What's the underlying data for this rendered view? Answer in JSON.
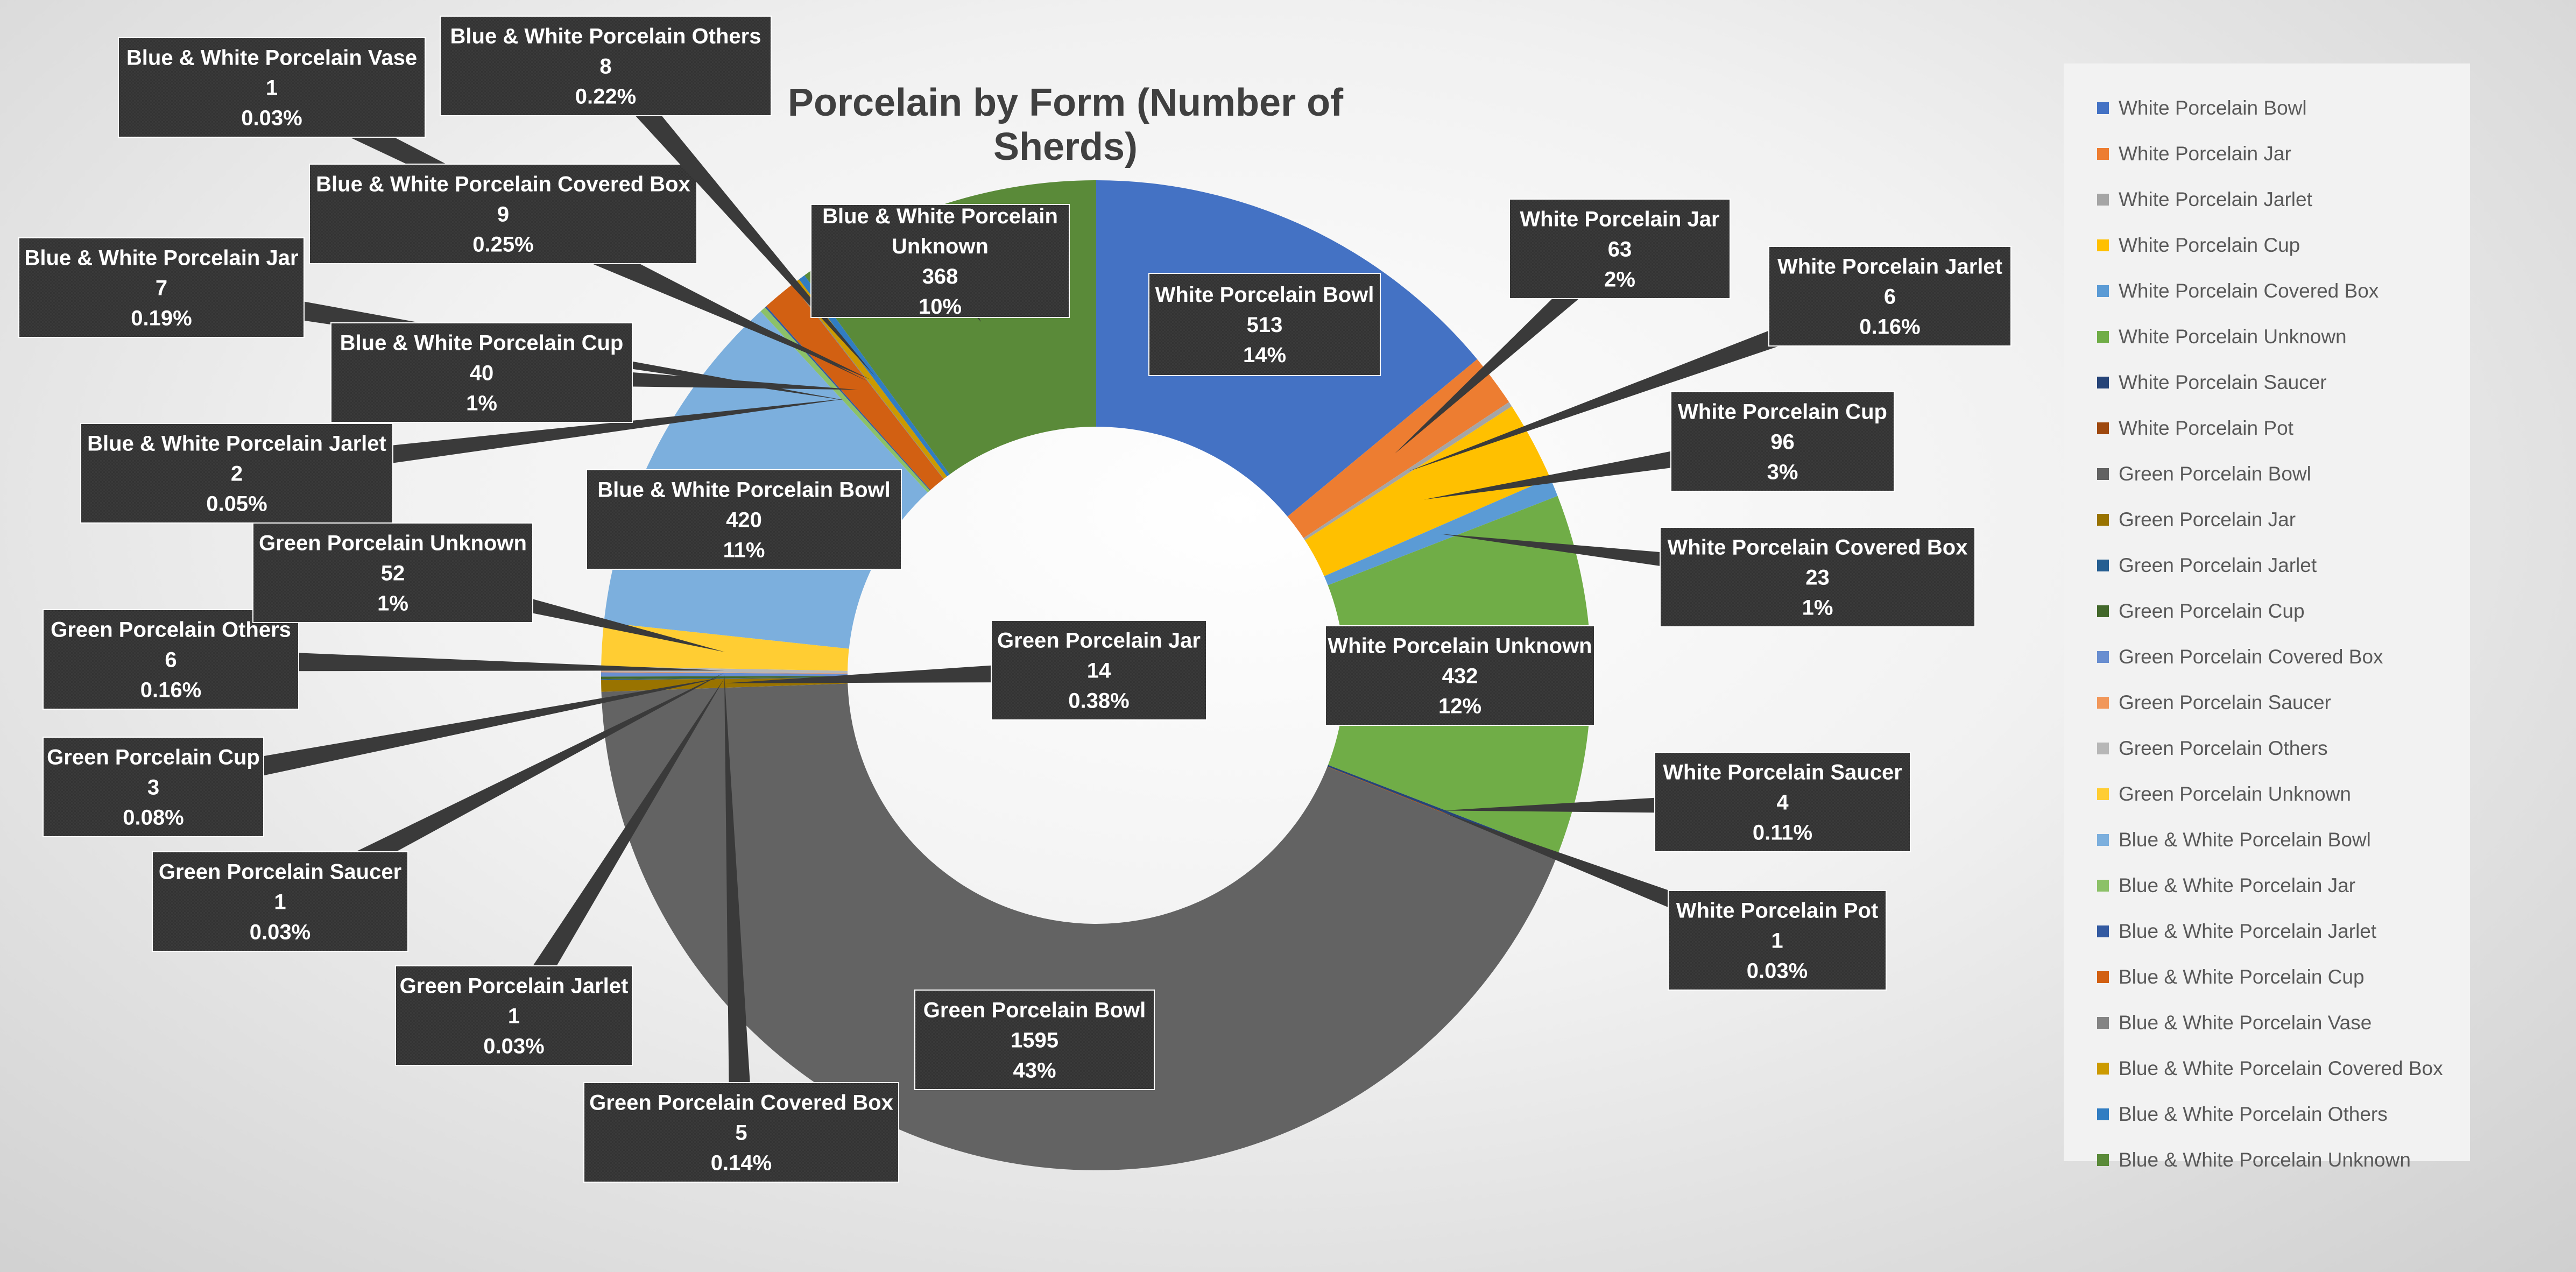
{
  "chart_data": {
    "type": "doughnut",
    "title": "Porcelain by Form (Number of Sherds)",
    "legend_position": "right",
    "slices": [
      {
        "name": "White Porcelain Bowl",
        "value": 513,
        "percent": "14%",
        "color": "#4472C4",
        "label_lines": [
          "White Porcelain Bowl"
        ]
      },
      {
        "name": "White Porcelain Jar",
        "value": 63,
        "percent": "2%",
        "color": "#ED7D31",
        "label_lines": [
          "White Porcelain Jar"
        ]
      },
      {
        "name": "White Porcelain Jarlet",
        "value": 6,
        "percent": "0.16%",
        "color": "#A5A5A5",
        "label_lines": [
          "White Porcelain Jarlet"
        ]
      },
      {
        "name": "White Porcelain Cup",
        "value": 96,
        "percent": "3%",
        "color": "#FFC000",
        "label_lines": [
          "White Porcelain Cup"
        ]
      },
      {
        "name": "White Porcelain Covered Box",
        "value": 23,
        "percent": "1%",
        "color": "#5B9BD5",
        "label_lines": [
          "White Porcelain Covered Box"
        ]
      },
      {
        "name": "White Porcelain Unknown",
        "value": 432,
        "percent": "12%",
        "color": "#70AD47",
        "label_lines": [
          "White Porcelain Unknown"
        ]
      },
      {
        "name": "White Porcelain Saucer",
        "value": 4,
        "percent": "0.11%",
        "color": "#264478",
        "label_lines": [
          "White Porcelain Saucer"
        ]
      },
      {
        "name": "White Porcelain Pot",
        "value": 1,
        "percent": "0.03%",
        "color": "#9E480E",
        "label_lines": [
          "White Porcelain Pot"
        ]
      },
      {
        "name": "Green Porcelain Bowl",
        "value": 1595,
        "percent": "43%",
        "color": "#636363",
        "label_lines": [
          "Green Porcelain Bowl"
        ]
      },
      {
        "name": "Green Porcelain Jar",
        "value": 14,
        "percent": "0.38%",
        "color": "#997300",
        "label_lines": [
          "Green Porcelain Jar"
        ]
      },
      {
        "name": "Green Porcelain Jarlet",
        "value": 1,
        "percent": "0.03%",
        "color": "#255E91",
        "label_lines": [
          "Green Porcelain Jarlet"
        ]
      },
      {
        "name": "Green Porcelain Cup",
        "value": 3,
        "percent": "0.08%",
        "color": "#43682B",
        "label_lines": [
          "Green Porcelain Cup"
        ]
      },
      {
        "name": "Green Porcelain Covered Box",
        "value": 5,
        "percent": "0.14%",
        "color": "#698ED0",
        "label_lines": [
          "Green Porcelain Covered Box"
        ]
      },
      {
        "name": "Green Porcelain Saucer",
        "value": 1,
        "percent": "0.03%",
        "color": "#F1975A",
        "label_lines": [
          "Green Porcelain Saucer"
        ]
      },
      {
        "name": "Green Porcelain Others",
        "value": 6,
        "percent": "0.16%",
        "color": "#B7B7B7",
        "label_lines": [
          "Green Porcelain Others"
        ]
      },
      {
        "name": "Green Porcelain Unknown",
        "value": 52,
        "percent": "1%",
        "color": "#FFCD33",
        "label_lines": [
          "Green Porcelain Unknown"
        ]
      },
      {
        "name": "Blue & White Porcelain Bowl",
        "value": 420,
        "percent": "11%",
        "color": "#7CAFDD",
        "label_lines": [
          "Blue & White Porcelain Bowl"
        ]
      },
      {
        "name": "Blue & White Porcelain Jar",
        "value": 7,
        "percent": "0.19%",
        "color": "#8CC168",
        "label_lines": [
          "Blue & White Porcelain Jar"
        ]
      },
      {
        "name": "Blue & White Porcelain Jarlet",
        "value": 2,
        "percent": "0.05%",
        "color": "#335AA1",
        "label_lines": [
          "Blue & White Porcelain Jarlet"
        ]
      },
      {
        "name": "Blue & White Porcelain Cup",
        "value": 40,
        "percent": "1%",
        "color": "#D26012",
        "label_lines": [
          "Blue & White Porcelain Cup"
        ]
      },
      {
        "name": "Blue & White Porcelain Vase",
        "value": 1,
        "percent": "0.03%",
        "color": "#848484",
        "label_lines": [
          "Blue & White Porcelain Vase"
        ]
      },
      {
        "name": "Blue & White Porcelain Covered Box",
        "value": 9,
        "percent": "0.25%",
        "color": "#CC9A00",
        "label_lines": [
          "Blue & White Porcelain Covered Box"
        ]
      },
      {
        "name": "Blue & White Porcelain Others",
        "value": 8,
        "percent": "0.22%",
        "color": "#317DC2",
        "label_lines": [
          "Blue & White Porcelain Others"
        ]
      },
      {
        "name": "Blue & White Porcelain Unknown",
        "value": 368,
        "percent": "10%",
        "color": "#5A8A39",
        "label_lines": [
          "Blue & White Porcelain",
          "Unknown"
        ]
      }
    ]
  }
}
